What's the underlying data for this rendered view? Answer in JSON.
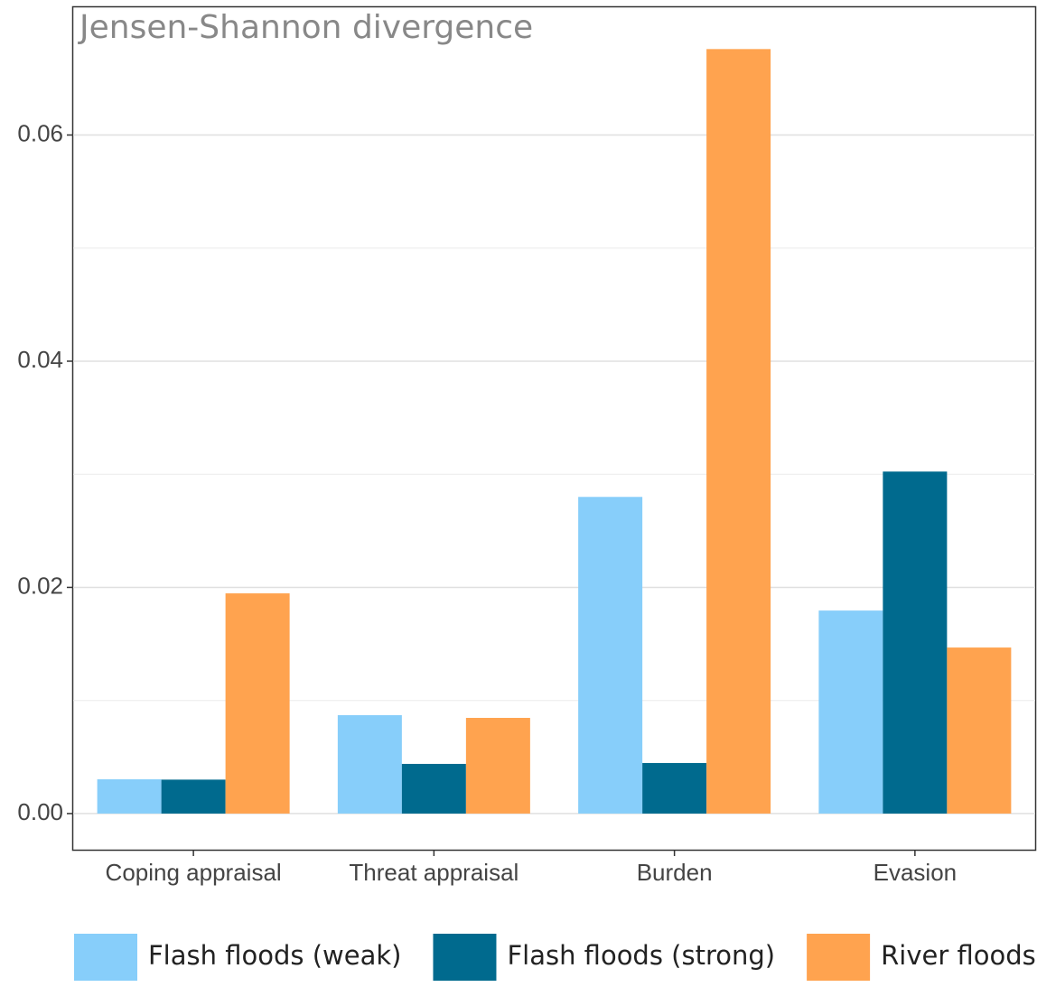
{
  "chart_data": {
    "type": "bar",
    "title": "Jensen-Shannon divergence",
    "categories": [
      "Coping appraisal",
      "Threat appraisal",
      "Burden",
      "Evasion"
    ],
    "series": [
      {
        "name": "Flash floods (weak)",
        "color": "#87cefa",
        "values": [
          0.00303,
          0.0087,
          0.028,
          0.01795
        ]
      },
      {
        "name": "Flash floods (strong)",
        "color": "#006a8e",
        "values": [
          0.003,
          0.00439,
          0.00447,
          0.03024
        ]
      },
      {
        "name": "River floods",
        "color": "#ffa34f",
        "values": [
          0.01947,
          0.00846,
          0.0676,
          0.01468
        ]
      }
    ],
    "ylim": [
      -0.0032,
      0.0713
    ],
    "yticks": [
      {
        "value": 0,
        "label": "0.00"
      },
      {
        "value": 0.02,
        "label": "0.02"
      },
      {
        "value": 0.04,
        "label": "0.04"
      },
      {
        "value": 0.06,
        "label": "0.06"
      }
    ],
    "minor_grid": [
      0.01,
      0.03,
      0.05
    ],
    "grid": true,
    "legend": "bottom"
  }
}
